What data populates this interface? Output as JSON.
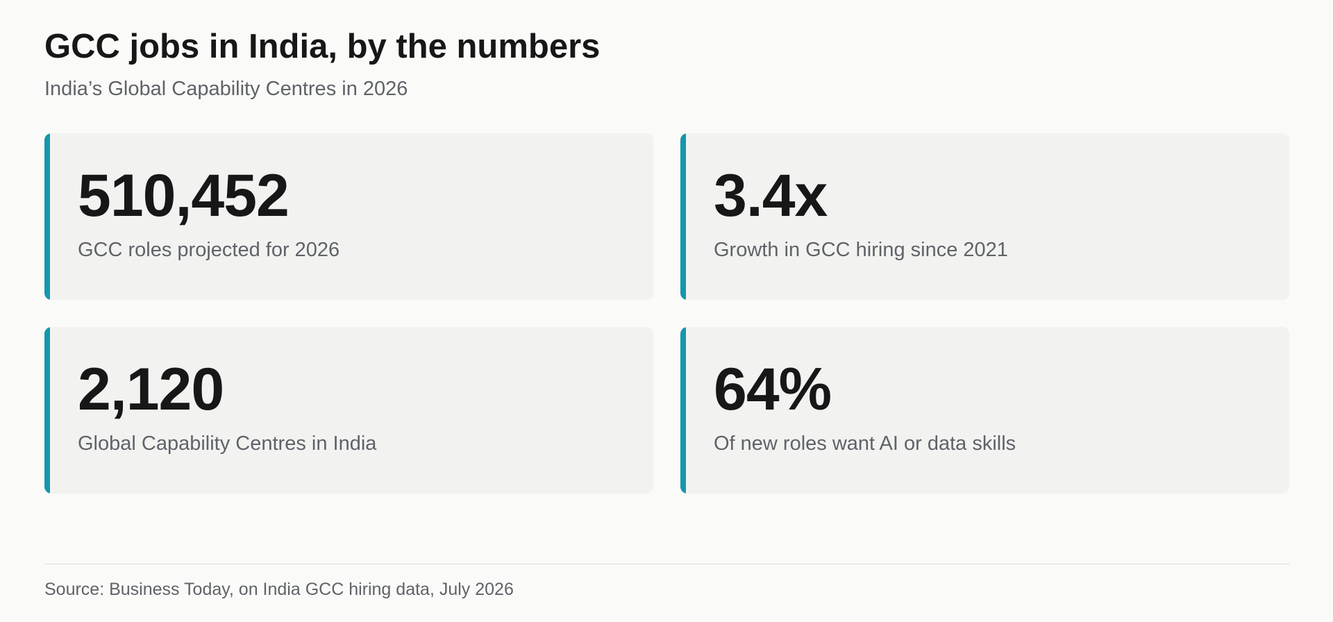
{
  "header": {
    "title": "GCC jobs in India, by the numbers",
    "subtitle": "India’s Global Capability Centres in 2026"
  },
  "colors": {
    "accent": "#1696ad",
    "card_background": "#f2f3f1",
    "page_background": "#fafaf8"
  },
  "chart_data": {
    "type": "table",
    "title": "GCC jobs in India, by the numbers",
    "subtitle": "India’s Global Capability Centres in 2026",
    "stats": [
      {
        "value": "510,452",
        "label": "GCC roles projected for 2026"
      },
      {
        "value": "3.4x",
        "label": "Growth in GCC hiring since 2021"
      },
      {
        "value": "2,120",
        "label": "Global Capability Centres in India"
      },
      {
        "value": "64%",
        "label": "Of new roles want AI or data skills"
      }
    ],
    "source": "Source: Business Today, on India GCC hiring data, July 2026"
  },
  "footer": {
    "source": "Source: Business Today, on India GCC hiring data, July 2026"
  }
}
